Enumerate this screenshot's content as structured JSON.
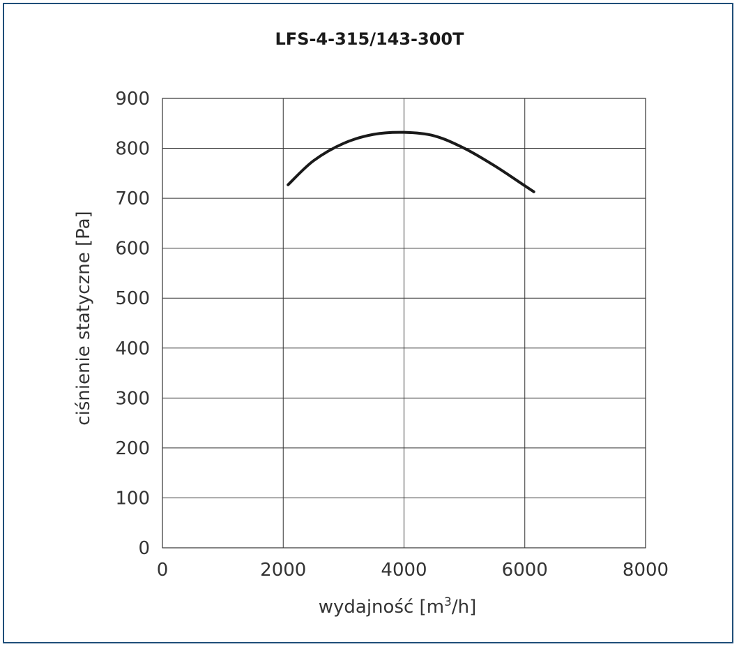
{
  "chart_data": {
    "type": "line",
    "title": "LFS-4-315/143-300T",
    "xlabel_main": "wydajność [m",
    "xlabel_sup": "3",
    "xlabel_tail": "/h]",
    "ylabel": "ciśnienie statyczne [Pa]",
    "xlim": [
      0,
      8000
    ],
    "ylim": [
      0,
      900
    ],
    "x_ticks": [
      "0",
      "2000",
      "4000",
      "6000",
      "8000"
    ],
    "y_ticks": [
      "0",
      "100",
      "200",
      "300",
      "400",
      "500",
      "600",
      "700",
      "800",
      "900"
    ],
    "grid": true,
    "series": [
      {
        "x": [
          2080,
          2500,
          3000,
          3500,
          4000,
          4500,
          5000,
          5500,
          6000,
          6150
        ],
        "y": [
          727,
          775,
          810,
          828,
          832,
          825,
          800,
          765,
          725,
          713
        ]
      }
    ],
    "line_color": "#1a1a1a",
    "frame_color": "#1f4e79"
  }
}
